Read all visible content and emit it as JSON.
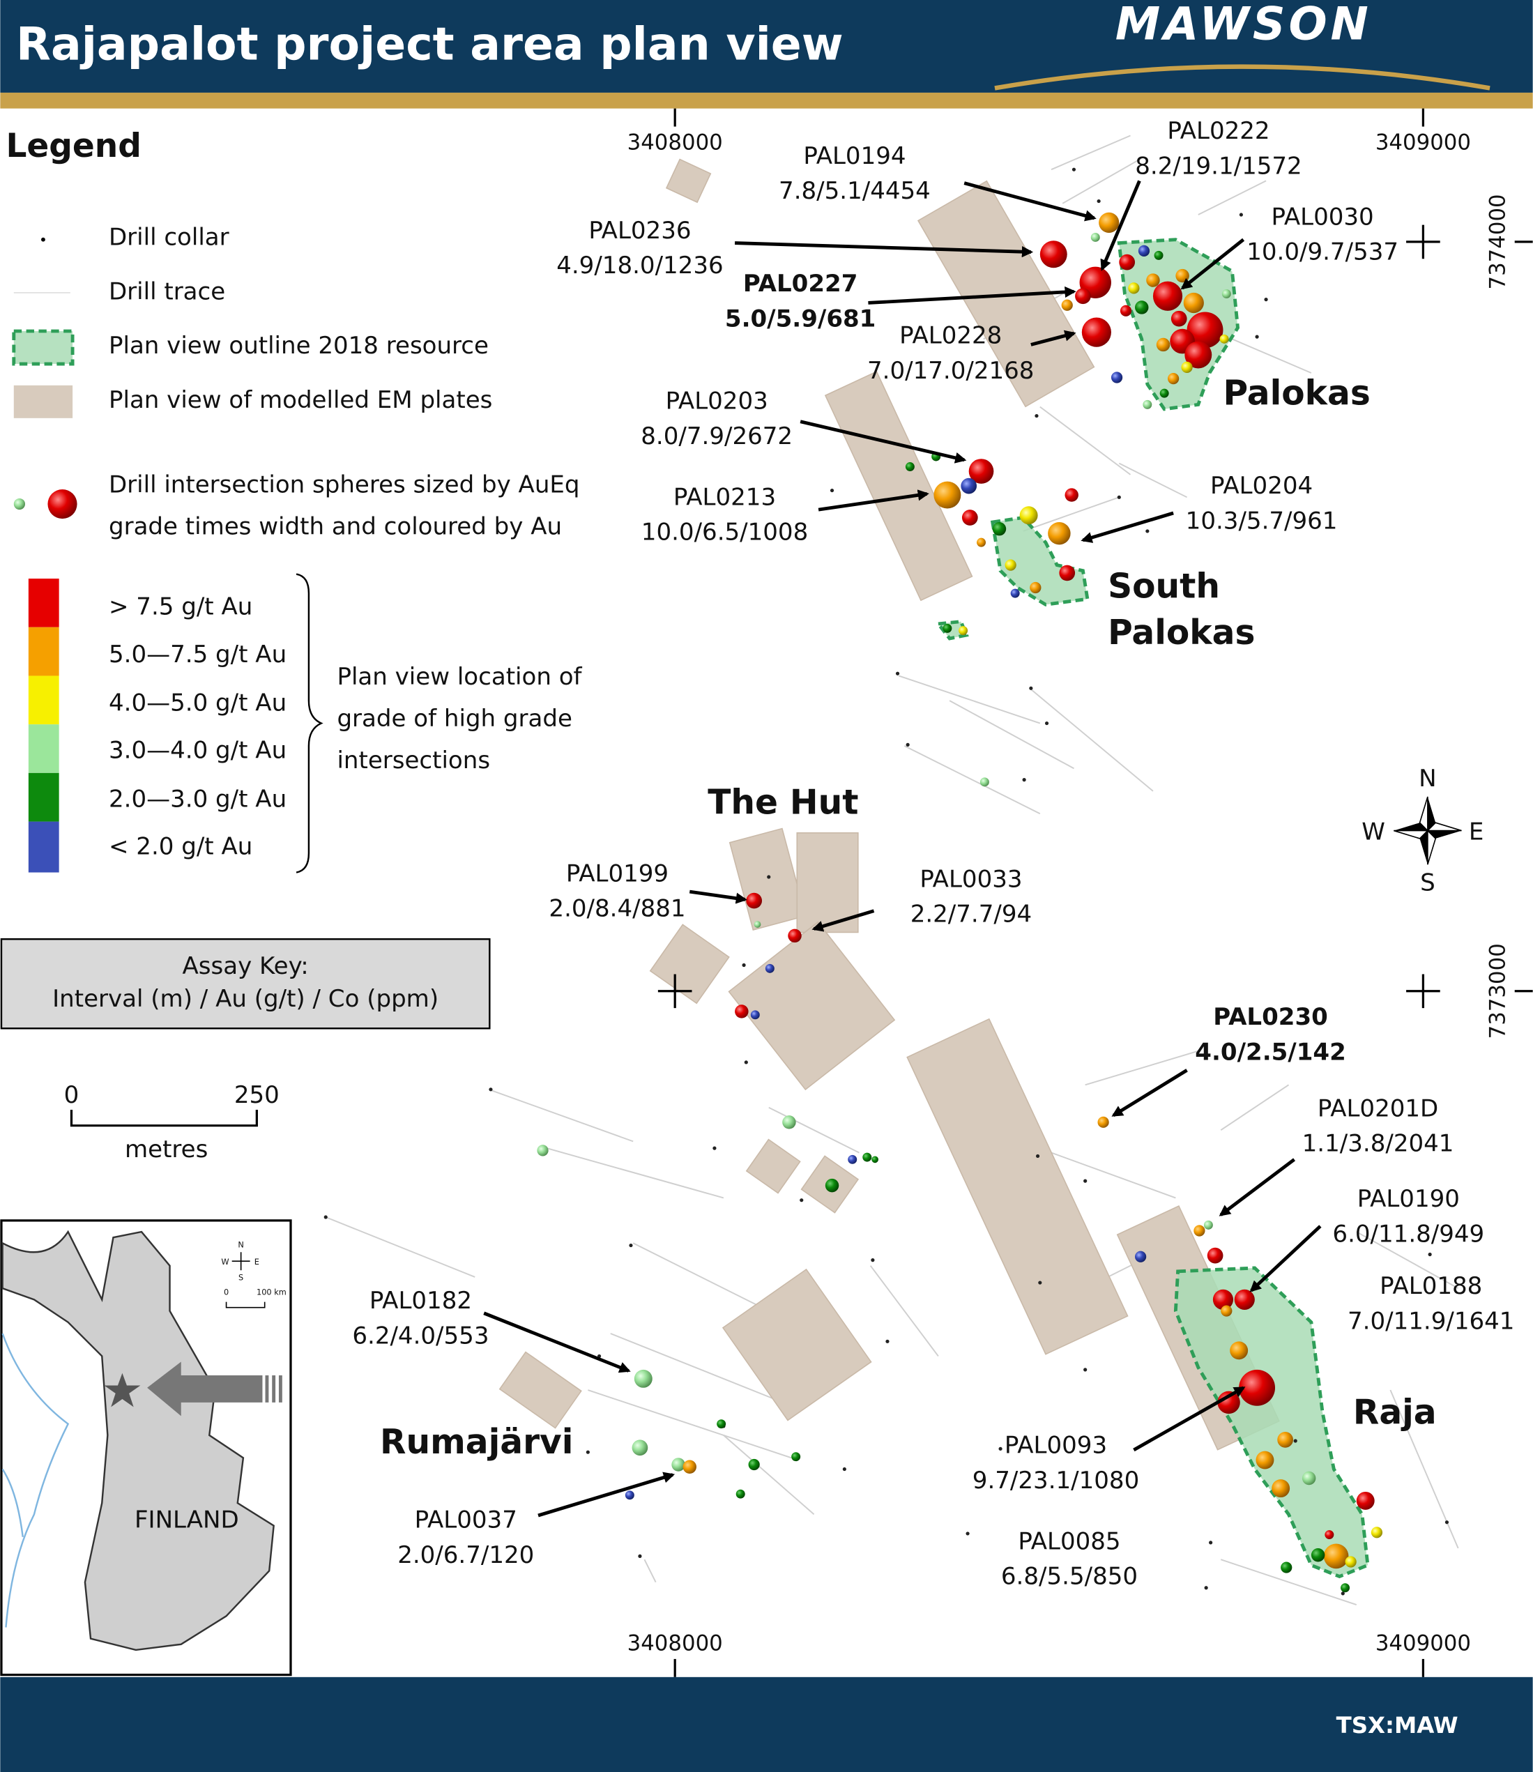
{
  "header": {
    "title": "Rajapalot project area plan view",
    "logo": "MAWSON"
  },
  "legend": {
    "title": "Legend",
    "items": [
      "Drill collar",
      "Drill trace",
      "Plan view outline 2018 resource",
      "Plan view of modelled EM plates"
    ],
    "spheres_note": [
      "Drill intersection spheres sized by AuEq",
      "grade times width and coloured by Au"
    ],
    "grades": [
      "> 7.5 g/t Au",
      "5.0—7.5 g/t Au",
      "4.0—5.0 g/t Au",
      "3.0—4.0 g/t Au",
      "2.0—3.0 g/t Au",
      "< 2.0 g/t Au"
    ],
    "bracket_note": [
      "Plan view location of",
      "grade of high grade",
      "intersections"
    ]
  },
  "assay_key": {
    "title": "Assay Key:",
    "text": "Interval (m) / Au (g/t) / Co (ppm)"
  },
  "scale": {
    "ticks": [
      "0",
      "250"
    ],
    "unit": "metres"
  },
  "grid_labels": {
    "top": [
      "3408000",
      "3409000"
    ],
    "bottom": [
      "3408000",
      "3409000"
    ],
    "right": [
      "7374000",
      "7373000"
    ]
  },
  "areas": [
    "Palokas",
    "South",
    "Palokas",
    "The Hut",
    "Rumajärvi",
    "Raja"
  ],
  "compass": [
    "N",
    "E",
    "S",
    "W"
  ],
  "holes": [
    {
      "name": "PAL0194",
      "assay": "7.8/5.1/4454"
    },
    {
      "name": "PAL0222",
      "assay": "8.2/19.1/1572"
    },
    {
      "name": "PAL0236",
      "assay": "4.9/18.0/1236"
    },
    {
      "name": "PAL0030",
      "assay": "10.0/9.7/537"
    },
    {
      "name": "PAL0227",
      "assay": "5.0/5.9/681"
    },
    {
      "name": "PAL0228",
      "assay": "7.0/17.0/2168"
    },
    {
      "name": "PAL0203",
      "assay": "8.0/7.9/2672"
    },
    {
      "name": "PAL0213",
      "assay": "10.0/6.5/1008"
    },
    {
      "name": "PAL0204",
      "assay": "10.3/5.7/961"
    },
    {
      "name": "PAL0199",
      "assay": "2.0/8.4/881"
    },
    {
      "name": "PAL0033",
      "assay": "2.2/7.7/94"
    },
    {
      "name": "PAL0230",
      "assay": "4.0/2.5/142"
    },
    {
      "name": "PAL0201D",
      "assay": "1.1/3.8/2041"
    },
    {
      "name": "PAL0190",
      "assay": "6.0/11.8/949"
    },
    {
      "name": "PAL0188",
      "assay": "7.0/11.9/1641"
    },
    {
      "name": "PAL0182",
      "assay": "6.2/4.0/553"
    },
    {
      "name": "PAL0093",
      "assay": "9.7/23.1/1080"
    },
    {
      "name": "PAL0037",
      "assay": "2.0/6.7/120"
    },
    {
      "name": "PAL0085",
      "assay": "6.8/5.5/850"
    }
  ],
  "inset": {
    "label": "FINLAND",
    "scale": [
      "0",
      "100 km"
    ],
    "compass": [
      "N",
      "E",
      "S",
      "W"
    ]
  },
  "footer": "TSX:MAW"
}
